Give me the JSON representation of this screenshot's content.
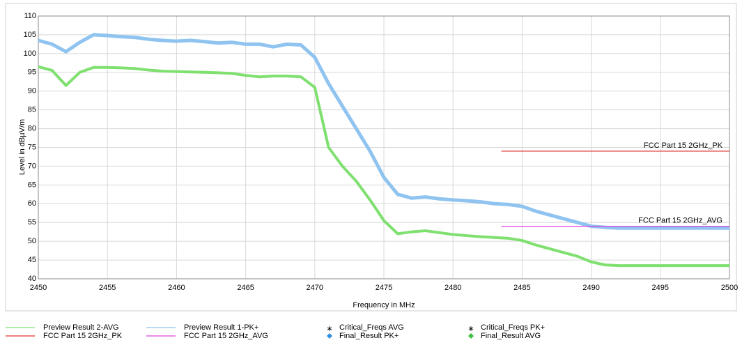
{
  "chart_data": {
    "type": "line",
    "xlabel": "Frequency in MHz",
    "ylabel": "Level in dBµV/m",
    "xlim": [
      2450,
      2500
    ],
    "ylim": [
      40,
      110
    ],
    "xticks": [
      2450,
      2455,
      2460,
      2465,
      2470,
      2475,
      2480,
      2485,
      2490,
      2495,
      2500
    ],
    "yticks": [
      40,
      45,
      50,
      55,
      60,
      65,
      70,
      75,
      80,
      85,
      90,
      95,
      100,
      105,
      110
    ],
    "grid": true,
    "legend": "bottom",
    "series": [
      {
        "name": "Preview Result 2-AVG",
        "color": "#7fe070",
        "marker": "line",
        "x": [
          2450,
          2451,
          2452,
          2453,
          2454,
          2455,
          2456,
          2457,
          2458,
          2459,
          2460,
          2461,
          2462,
          2463,
          2464,
          2465,
          2466,
          2467,
          2468,
          2469,
          2470,
          2471,
          2472,
          2473,
          2474,
          2475,
          2476,
          2477,
          2478,
          2479,
          2480,
          2481,
          2482,
          2483,
          2484,
          2485,
          2486,
          2487,
          2488,
          2489,
          2490,
          2491,
          2492,
          2493,
          2494,
          2495,
          2496,
          2497,
          2498,
          2499,
          2500
        ],
        "values": [
          96.5,
          95.5,
          91.5,
          95,
          96.3,
          96.3,
          96.2,
          96,
          95.6,
          95.3,
          95.2,
          95.1,
          95,
          94.9,
          94.7,
          94.2,
          93.8,
          94,
          94,
          93.8,
          91,
          75,
          70,
          66,
          61,
          55.5,
          52,
          52.5,
          52.8,
          52.3,
          51.8,
          51.5,
          51.2,
          51,
          50.8,
          50.2,
          49,
          48,
          47,
          46,
          44.5,
          43.7,
          43.5,
          43.5,
          43.5,
          43.5,
          43.5,
          43.5,
          43.5,
          43.5,
          43.5
        ]
      },
      {
        "name": "Preview Result 1-PK+",
        "color": "#8fc3f0",
        "marker": "line",
        "x": [
          2450,
          2451,
          2452,
          2453,
          2454,
          2455,
          2456,
          2457,
          2458,
          2459,
          2460,
          2461,
          2462,
          2463,
          2464,
          2465,
          2466,
          2467,
          2468,
          2469,
          2470,
          2471,
          2472,
          2473,
          2474,
          2475,
          2476,
          2477,
          2478,
          2479,
          2480,
          2481,
          2482,
          2483,
          2484,
          2485,
          2486,
          2487,
          2488,
          2489,
          2490,
          2491,
          2492,
          2493,
          2494,
          2495,
          2496,
          2497,
          2498,
          2499,
          2500
        ],
        "values": [
          103.5,
          102.5,
          100.5,
          103,
          105,
          104.8,
          104.5,
          104.3,
          103.8,
          103.5,
          103.3,
          103.5,
          103.2,
          102.8,
          103,
          102.5,
          102.5,
          101.8,
          102.5,
          102.3,
          99,
          92,
          86,
          80,
          74,
          67,
          62.5,
          61.5,
          61.8,
          61.3,
          61,
          60.8,
          60.5,
          60,
          59.8,
          59.3,
          58,
          57,
          56,
          55,
          54,
          53.7,
          53.5,
          53.5,
          53.5,
          53.5,
          53.5,
          53.5,
          53.5,
          53.5,
          53.5
        ]
      },
      {
        "name": "Critical_Freqs AVG",
        "color": "#2020d0",
        "marker": "star",
        "x": [],
        "values": []
      },
      {
        "name": "Critical_Freqs PK+",
        "color": "#e02020",
        "marker": "star",
        "x": [],
        "values": []
      },
      {
        "name": "FCC Part 15 2GHz_PK",
        "color": "#e03030",
        "marker": "line",
        "x": [
          2483.5,
          2500
        ],
        "values": [
          74,
          74
        ]
      },
      {
        "name": "FCC Part 15 2GHz_AVG",
        "color": "#e040e0",
        "marker": "line",
        "x": [
          2483.5,
          2500
        ],
        "values": [
          54,
          54
        ]
      },
      {
        "name": "Final_Result PK+",
        "color": "#3090e0",
        "marker": "diamond",
        "x": [],
        "values": []
      },
      {
        "name": "Final_Result AVG",
        "color": "#40c040",
        "marker": "diamond",
        "x": [],
        "values": []
      }
    ]
  }
}
